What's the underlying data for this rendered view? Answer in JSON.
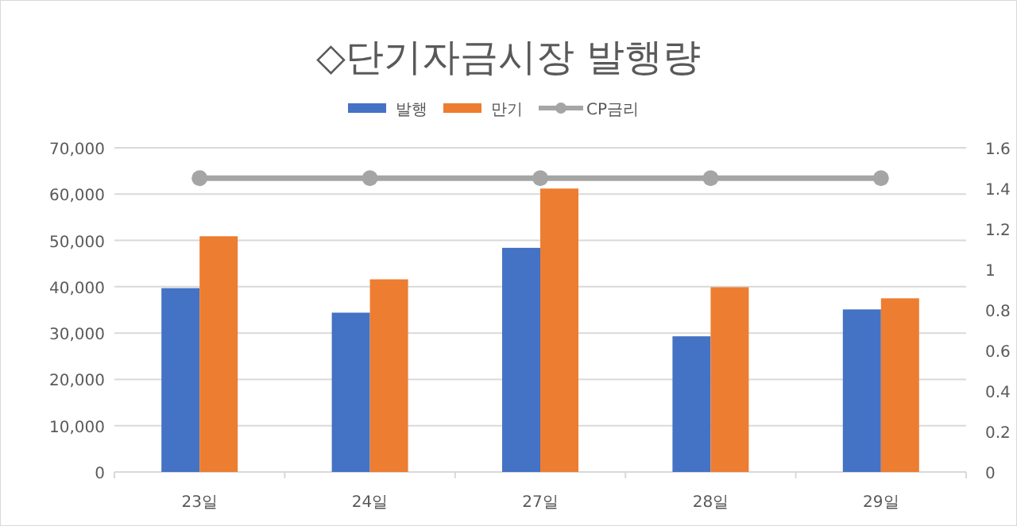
{
  "chart_data": {
    "type": "bar",
    "title": "◇단기자금시장 발행량",
    "categories": [
      "23일",
      "24일",
      "27일",
      "28일",
      "29일"
    ],
    "series": [
      {
        "name": "발행",
        "color": "#4472c4",
        "values": [
          39700,
          34400,
          48400,
          29300,
          35100
        ]
      },
      {
        "name": "만기",
        "color": "#ed7d31",
        "values": [
          50900,
          41600,
          61200,
          39900,
          37500
        ]
      },
      {
        "name": "CP금리",
        "type": "line",
        "axis": "y2",
        "color": "#a5a5a5",
        "marker": "circle",
        "values": [
          1.45,
          1.45,
          1.45,
          1.45,
          1.45
        ]
      }
    ],
    "ylim": [
      0,
      70000
    ],
    "yticks": [
      0,
      {
        "value": 10000,
        "label": "10,000"
      },
      {
        "value": 20000,
        "label": "20,000"
      },
      {
        "value": 30000,
        "label": "30,000"
      },
      {
        "value": 40000,
        "label": "40,000"
      },
      {
        "value": 50000,
        "label": "50,000"
      },
      {
        "value": 60000,
        "label": "60,000"
      },
      {
        "value": 70000,
        "label": "70,000"
      }
    ],
    "y2lim": [
      0,
      1.6
    ],
    "y2ticks": [
      0,
      0.2,
      0.4,
      0.6,
      0.8,
      1,
      1.2,
      1.4,
      1.6
    ],
    "grid": "y",
    "legend": "top"
  }
}
